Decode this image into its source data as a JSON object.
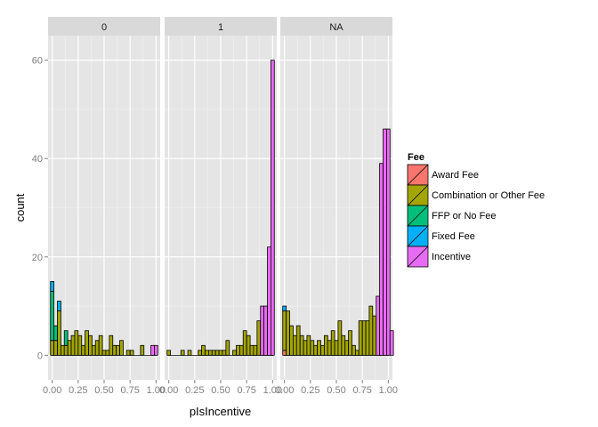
{
  "chart_data": {
    "type": "bar",
    "subtype": "faceted-stacked-histogram",
    "xlabel": "pIsIncentive",
    "ylabel": "count",
    "ylim": [
      -5,
      65
    ],
    "yticks": [
      0,
      20,
      40,
      60
    ],
    "xlim": [
      -0.04,
      1.04
    ],
    "xticks": [
      0,
      0.25,
      0.5,
      0.75,
      1.0
    ],
    "xtick_labels": [
      "0.00",
      "0.25",
      "0.50",
      "0.75",
      "1.00"
    ],
    "binwidth": 0.03333,
    "grid": true,
    "legend": {
      "title": "Fee",
      "position": "right",
      "items": [
        {
          "label": "Award Fee",
          "color": "#F8766D"
        },
        {
          "label": "Combination or Other Fee",
          "color": "#A3A500"
        },
        {
          "label": "FFP or No Fee",
          "color": "#00BF7D"
        },
        {
          "label": "Fixed Fee",
          "color": "#00B0F6"
        },
        {
          "label": "Incentive",
          "color": "#E76BF3"
        }
      ]
    },
    "facets": [
      {
        "label": "0",
        "bins": [
          {
            "x": 0.0,
            "stack": [
              0,
              3,
              10,
              2,
              0
            ]
          },
          {
            "x": 0.033,
            "stack": [
              0,
              3,
              3,
              0,
              0
            ]
          },
          {
            "x": 0.067,
            "stack": [
              0,
              9,
              0,
              2,
              0
            ]
          },
          {
            "x": 0.1,
            "stack": [
              0,
              2,
              0,
              0,
              0
            ]
          },
          {
            "x": 0.133,
            "stack": [
              0,
              2,
              3,
              0,
              0
            ]
          },
          {
            "x": 0.167,
            "stack": [
              0,
              3,
              0,
              0,
              0
            ]
          },
          {
            "x": 0.2,
            "stack": [
              0,
              4,
              0,
              0,
              0
            ]
          },
          {
            "x": 0.233,
            "stack": [
              0,
              5,
              0,
              0,
              0
            ]
          },
          {
            "x": 0.267,
            "stack": [
              0,
              4,
              0,
              0,
              0
            ]
          },
          {
            "x": 0.3,
            "stack": [
              0,
              2,
              0,
              0,
              0
            ]
          },
          {
            "x": 0.333,
            "stack": [
              0,
              5,
              0,
              0,
              0
            ]
          },
          {
            "x": 0.367,
            "stack": [
              0,
              4,
              0,
              0,
              0
            ]
          },
          {
            "x": 0.4,
            "stack": [
              0,
              2,
              0,
              0,
              0
            ]
          },
          {
            "x": 0.433,
            "stack": [
              0,
              3,
              0,
              0,
              0
            ]
          },
          {
            "x": 0.467,
            "stack": [
              0,
              4,
              0,
              0,
              0
            ]
          },
          {
            "x": 0.5,
            "stack": [
              0,
              1,
              0,
              0,
              0
            ]
          },
          {
            "x": 0.533,
            "stack": [
              0,
              1,
              0,
              0,
              0
            ]
          },
          {
            "x": 0.567,
            "stack": [
              0,
              4,
              0,
              0,
              0
            ]
          },
          {
            "x": 0.6,
            "stack": [
              0,
              2,
              0,
              0,
              0
            ]
          },
          {
            "x": 0.633,
            "stack": [
              0,
              2,
              0,
              0,
              0
            ]
          },
          {
            "x": 0.667,
            "stack": [
              0,
              3,
              0,
              0,
              0
            ]
          },
          {
            "x": 0.733,
            "stack": [
              0,
              1,
              0,
              0,
              0
            ]
          },
          {
            "x": 0.767,
            "stack": [
              0,
              1,
              0,
              0,
              0
            ]
          },
          {
            "x": 0.867,
            "stack": [
              0,
              2,
              0,
              0,
              0
            ]
          },
          {
            "x": 0.967,
            "stack": [
              0,
              0,
              0,
              0,
              2
            ]
          },
          {
            "x": 1.0,
            "stack": [
              0,
              0,
              0,
              0,
              2
            ]
          }
        ]
      },
      {
        "label": "1",
        "bins": [
          {
            "x": 0.0,
            "stack": [
              0,
              1,
              0,
              0,
              0
            ]
          },
          {
            "x": 0.133,
            "stack": [
              0,
              1,
              0,
              0,
              0
            ]
          },
          {
            "x": 0.2,
            "stack": [
              0,
              1,
              0,
              0,
              0
            ]
          },
          {
            "x": 0.3,
            "stack": [
              0,
              1,
              0,
              0,
              0
            ]
          },
          {
            "x": 0.333,
            "stack": [
              0,
              2,
              0,
              0,
              0
            ]
          },
          {
            "x": 0.367,
            "stack": [
              0,
              1,
              0,
              0,
              0
            ]
          },
          {
            "x": 0.4,
            "stack": [
              0,
              1,
              0,
              0,
              0
            ]
          },
          {
            "x": 0.433,
            "stack": [
              0,
              1,
              0,
              0,
              0
            ]
          },
          {
            "x": 0.467,
            "stack": [
              0,
              1,
              0,
              0,
              0
            ]
          },
          {
            "x": 0.5,
            "stack": [
              0,
              1,
              0,
              0,
              0
            ]
          },
          {
            "x": 0.533,
            "stack": [
              0,
              1,
              0,
              0,
              0
            ]
          },
          {
            "x": 0.567,
            "stack": [
              0,
              3,
              0,
              0,
              0
            ]
          },
          {
            "x": 0.633,
            "stack": [
              0,
              1,
              0,
              0,
              0
            ]
          },
          {
            "x": 0.667,
            "stack": [
              0,
              2,
              0,
              0,
              0
            ]
          },
          {
            "x": 0.7,
            "stack": [
              0,
              2,
              0,
              0,
              0
            ]
          },
          {
            "x": 0.733,
            "stack": [
              0,
              5,
              0,
              0,
              0
            ]
          },
          {
            "x": 0.767,
            "stack": [
              0,
              4,
              0,
              0,
              0
            ]
          },
          {
            "x": 0.8,
            "stack": [
              0,
              2,
              0,
              0,
              0
            ]
          },
          {
            "x": 0.833,
            "stack": [
              0,
              2,
              0,
              0,
              0
            ]
          },
          {
            "x": 0.867,
            "stack": [
              0,
              7,
              0,
              0,
              0
            ]
          },
          {
            "x": 0.9,
            "stack": [
              0,
              0,
              0,
              0,
              10
            ]
          },
          {
            "x": 0.933,
            "stack": [
              0,
              0,
              0,
              0,
              10
            ]
          },
          {
            "x": 0.967,
            "stack": [
              0,
              0,
              0,
              0,
              22
            ]
          },
          {
            "x": 1.0,
            "stack": [
              0,
              0,
              0,
              0,
              60
            ]
          }
        ]
      },
      {
        "label": "NA",
        "bins": [
          {
            "x": 0.0,
            "stack": [
              1,
              8,
              0,
              1,
              0
            ]
          },
          {
            "x": 0.033,
            "stack": [
              0,
              9,
              0,
              0,
              0
            ]
          },
          {
            "x": 0.067,
            "stack": [
              0,
              6,
              0,
              0,
              0
            ]
          },
          {
            "x": 0.1,
            "stack": [
              0,
              4,
              0,
              0,
              0
            ]
          },
          {
            "x": 0.133,
            "stack": [
              0,
              6,
              0,
              0,
              0
            ]
          },
          {
            "x": 0.167,
            "stack": [
              0,
              4,
              0,
              0,
              0
            ]
          },
          {
            "x": 0.2,
            "stack": [
              0,
              3,
              0,
              0,
              0
            ]
          },
          {
            "x": 0.233,
            "stack": [
              0,
              4,
              0,
              0,
              0
            ]
          },
          {
            "x": 0.267,
            "stack": [
              0,
              3,
              0,
              0,
              0
            ]
          },
          {
            "x": 0.3,
            "stack": [
              0,
              2,
              0,
              0,
              0
            ]
          },
          {
            "x": 0.333,
            "stack": [
              0,
              3,
              0,
              0,
              0
            ]
          },
          {
            "x": 0.367,
            "stack": [
              0,
              2,
              0,
              0,
              0
            ]
          },
          {
            "x": 0.4,
            "stack": [
              0,
              4,
              0,
              0,
              0
            ]
          },
          {
            "x": 0.433,
            "stack": [
              0,
              3,
              0,
              0,
              0
            ]
          },
          {
            "x": 0.467,
            "stack": [
              0,
              5,
              0,
              0,
              0
            ]
          },
          {
            "x": 0.5,
            "stack": [
              0,
              3,
              0,
              0,
              0
            ]
          },
          {
            "x": 0.533,
            "stack": [
              0,
              7,
              0,
              0,
              0
            ]
          },
          {
            "x": 0.567,
            "stack": [
              0,
              4,
              0,
              0,
              0
            ]
          },
          {
            "x": 0.6,
            "stack": [
              0,
              3,
              0,
              0,
              0
            ]
          },
          {
            "x": 0.633,
            "stack": [
              0,
              5,
              0,
              0,
              0
            ]
          },
          {
            "x": 0.667,
            "stack": [
              0,
              2,
              0,
              0,
              0
            ]
          },
          {
            "x": 0.7,
            "stack": [
              0,
              1,
              0,
              0,
              0
            ]
          },
          {
            "x": 0.733,
            "stack": [
              0,
              7,
              0,
              0,
              0
            ]
          },
          {
            "x": 0.767,
            "stack": [
              0,
              7,
              0,
              0,
              0
            ]
          },
          {
            "x": 0.8,
            "stack": [
              0,
              7,
              0,
              0,
              0
            ]
          },
          {
            "x": 0.833,
            "stack": [
              0,
              10,
              0,
              0,
              0
            ]
          },
          {
            "x": 0.867,
            "stack": [
              0,
              8,
              0,
              0,
              0
            ]
          },
          {
            "x": 0.9,
            "stack": [
              0,
              0,
              0,
              0,
              12
            ]
          },
          {
            "x": 0.933,
            "stack": [
              0,
              0,
              0,
              0,
              39
            ]
          },
          {
            "x": 0.967,
            "stack": [
              0,
              0,
              0,
              0,
              46
            ]
          },
          {
            "x": 1.0,
            "stack": [
              0,
              0,
              0,
              0,
              46
            ]
          },
          {
            "x": 1.033,
            "stack": [
              0,
              0,
              0,
              0,
              5
            ]
          }
        ]
      }
    ]
  }
}
